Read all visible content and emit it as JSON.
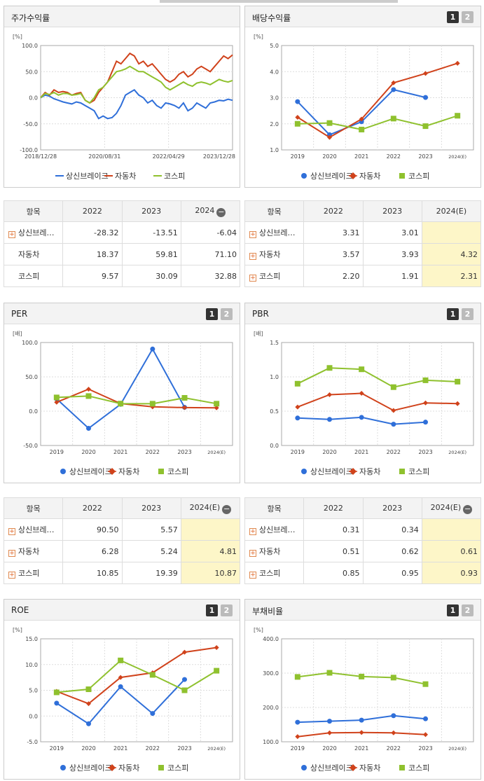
{
  "panels": [
    {
      "id": "stock",
      "title": "주가수익률",
      "buttons": [],
      "unit": "[%]"
    },
    {
      "id": "div",
      "title": "배당수익률",
      "buttons": [
        "1",
        "2"
      ],
      "unit": "[%]"
    },
    {
      "id": "per",
      "title": "PER",
      "buttons": [
        "1",
        "2"
      ],
      "unit": "[배]"
    },
    {
      "id": "pbr",
      "title": "PBR",
      "buttons": [
        "1",
        "2"
      ],
      "unit": "[배]"
    },
    {
      "id": "roe",
      "title": "ROE",
      "buttons": [
        "1",
        "2"
      ],
      "unit": "[%]"
    },
    {
      "id": "debt",
      "title": "부채비율",
      "buttons": [
        "1",
        "2"
      ],
      "unit": "[%]"
    }
  ],
  "legend": [
    "상신브레이크",
    "자동차",
    "코스피"
  ],
  "colors": {
    "s1": "#2f6fd9",
    "s2": "#d0421b",
    "s3": "#8fc12e"
  },
  "tables": [
    {
      "id": "t_stock",
      "headers": [
        "항목",
        "2022",
        "2023",
        "2024"
      ],
      "minus": true,
      "rows": [
        {
          "name": "상신브레…",
          "plus": true,
          "v": [
            "-28.32",
            "-13.51",
            "-6.04"
          ]
        },
        {
          "name": "자동차",
          "plus": false,
          "v": [
            "18.37",
            "59.81",
            "71.10"
          ]
        },
        {
          "name": "코스피",
          "plus": false,
          "v": [
            "9.57",
            "30.09",
            "32.88"
          ]
        }
      ]
    },
    {
      "id": "t_div",
      "headers": [
        "항목",
        "2022",
        "2023",
        "2024(E)"
      ],
      "minus": false,
      "rows": [
        {
          "name": "상신브레…",
          "plus": true,
          "v": [
            "3.31",
            "3.01",
            ""
          ]
        },
        {
          "name": "자동차",
          "plus": true,
          "v": [
            "3.57",
            "3.93",
            "4.32"
          ]
        },
        {
          "name": "코스피",
          "plus": true,
          "v": [
            "2.20",
            "1.91",
            "2.31"
          ]
        }
      ]
    },
    {
      "id": "t_per",
      "headers": [
        "항목",
        "2022",
        "2023",
        "2024(E)"
      ],
      "minus": true,
      "rows": [
        {
          "name": "상신브레…",
          "plus": true,
          "v": [
            "90.50",
            "5.57",
            ""
          ]
        },
        {
          "name": "자동차",
          "plus": true,
          "v": [
            "6.28",
            "5.24",
            "4.81"
          ]
        },
        {
          "name": "코스피",
          "plus": true,
          "v": [
            "10.85",
            "19.39",
            "10.87"
          ]
        }
      ]
    },
    {
      "id": "t_pbr",
      "headers": [
        "항목",
        "2022",
        "2023",
        "2024(E)"
      ],
      "minus": true,
      "rows": [
        {
          "name": "상신브레…",
          "plus": true,
          "v": [
            "0.31",
            "0.34",
            ""
          ]
        },
        {
          "name": "자동차",
          "plus": true,
          "v": [
            "0.51",
            "0.62",
            "0.61"
          ]
        },
        {
          "name": "코스피",
          "plus": true,
          "v": [
            "0.85",
            "0.95",
            "0.93"
          ]
        }
      ]
    }
  ],
  "chart_data": [
    {
      "id": "stock",
      "type": "line",
      "ylim": [
        -100,
        100
      ],
      "yticks": [
        "100.0",
        "50.0",
        "0.0",
        "-50.0",
        "-100.0"
      ],
      "xticks": [
        "2018/12/28",
        "2020/08/31",
        "2022/04/29",
        "2023/12/28"
      ],
      "series": [
        {
          "name": "상신브레이크",
          "values": [
            0,
            5,
            3,
            -2,
            -5,
            -8,
            -10,
            -12,
            -8,
            -10,
            -15,
            -20,
            -25,
            -40,
            -35,
            -40,
            -38,
            -30,
            -15,
            5,
            10,
            15,
            5,
            0,
            -10,
            -5,
            -15,
            -20,
            -10,
            -12,
            -15,
            -20,
            -10,
            -25,
            -20,
            -10,
            -15,
            -20,
            -10,
            -8,
            -5,
            -6,
            -3,
            -5
          ]
        },
        {
          "name": "자동차",
          "values": [
            0,
            10,
            5,
            15,
            10,
            12,
            10,
            5,
            8,
            10,
            -5,
            -10,
            -5,
            10,
            20,
            30,
            50,
            70,
            65,
            75,
            85,
            80,
            65,
            70,
            60,
            65,
            55,
            45,
            35,
            30,
            35,
            45,
            50,
            40,
            45,
            55,
            60,
            55,
            50,
            60,
            70,
            80,
            75,
            82
          ]
        },
        {
          "name": "코스피",
          "values": [
            0,
            8,
            6,
            10,
            5,
            8,
            8,
            5,
            6,
            8,
            -5,
            -10,
            0,
            15,
            20,
            30,
            40,
            50,
            52,
            55,
            60,
            55,
            50,
            50,
            45,
            40,
            35,
            30,
            20,
            15,
            20,
            25,
            30,
            25,
            22,
            28,
            30,
            28,
            25,
            30,
            35,
            32,
            30,
            33
          ]
        }
      ]
    },
    {
      "id": "div",
      "type": "line",
      "categories": [
        "2019",
        "2020",
        "2021",
        "2022",
        "2023",
        "2024(E)"
      ],
      "ylim": [
        1,
        5
      ],
      "yticks": [
        "5.0",
        "4.0",
        "3.0",
        "2.0",
        "1.0"
      ],
      "series": [
        {
          "name": "상신브레이크",
          "values": [
            2.85,
            1.58,
            2.08,
            3.31,
            3.01,
            null
          ]
        },
        {
          "name": "자동차",
          "values": [
            2.25,
            1.48,
            2.18,
            3.57,
            3.93,
            4.32
          ]
        },
        {
          "name": "코스피",
          "values": [
            2.0,
            2.03,
            1.78,
            2.2,
            1.91,
            2.31
          ]
        }
      ]
    },
    {
      "id": "per",
      "type": "line",
      "categories": [
        "2019",
        "2020",
        "2021",
        "2022",
        "2023",
        "2024(E)"
      ],
      "ylim": [
        -50,
        100
      ],
      "yticks": [
        "100.0",
        "50.0",
        "0.0",
        "-50.0"
      ],
      "series": [
        {
          "name": "상신브레이크",
          "values": [
            18,
            -25,
            10,
            90.5,
            5.57,
            null
          ]
        },
        {
          "name": "자동차",
          "values": [
            13,
            32,
            11,
            6.28,
            5.24,
            4.81
          ]
        },
        {
          "name": "코스피",
          "values": [
            20,
            22,
            11,
            10.85,
            19.39,
            10.87
          ]
        }
      ]
    },
    {
      "id": "pbr",
      "type": "line",
      "categories": [
        "2019",
        "2020",
        "2021",
        "2022",
        "2023",
        "2024(E)"
      ],
      "ylim": [
        0,
        1.5
      ],
      "yticks": [
        "1.5",
        "1.0",
        "0.5",
        "0.0"
      ],
      "series": [
        {
          "name": "상신브레이크",
          "values": [
            0.4,
            0.38,
            0.41,
            0.31,
            0.34,
            null
          ]
        },
        {
          "name": "자동차",
          "values": [
            0.56,
            0.74,
            0.76,
            0.51,
            0.62,
            0.61
          ]
        },
        {
          "name": "코스피",
          "values": [
            0.9,
            1.13,
            1.11,
            0.85,
            0.95,
            0.93
          ]
        }
      ]
    },
    {
      "id": "roe",
      "type": "line",
      "categories": [
        "2019",
        "2020",
        "2021",
        "2022",
        "2023",
        "2024(E)"
      ],
      "ylim": [
        -5,
        15
      ],
      "yticks": [
        "15.0",
        "10.0",
        "5.0",
        "0.0",
        "-5.0"
      ],
      "series": [
        {
          "name": "상신브레이크",
          "values": [
            2.5,
            -1.5,
            5.7,
            0.5,
            7.1,
            null
          ]
        },
        {
          "name": "자동차",
          "values": [
            4.8,
            2.4,
            7.5,
            8.4,
            12.4,
            13.3
          ]
        },
        {
          "name": "코스피",
          "values": [
            4.6,
            5.2,
            10.8,
            8.0,
            5.0,
            8.8
          ]
        }
      ]
    },
    {
      "id": "debt",
      "type": "line",
      "categories": [
        "2019",
        "2020",
        "2021",
        "2022",
        "2023",
        "2024(E)"
      ],
      "ylim": [
        100,
        400
      ],
      "yticks": [
        "400.0",
        "300.0",
        "200.0",
        "100.0"
      ],
      "series": [
        {
          "name": "상신브레이크",
          "values": [
            157,
            160,
            163,
            176,
            167,
            null
          ]
        },
        {
          "name": "자동차",
          "values": [
            115,
            126,
            127,
            126,
            121,
            null
          ]
        },
        {
          "name": "코스피",
          "values": [
            289,
            301,
            290,
            287,
            268,
            null
          ]
        }
      ]
    }
  ]
}
